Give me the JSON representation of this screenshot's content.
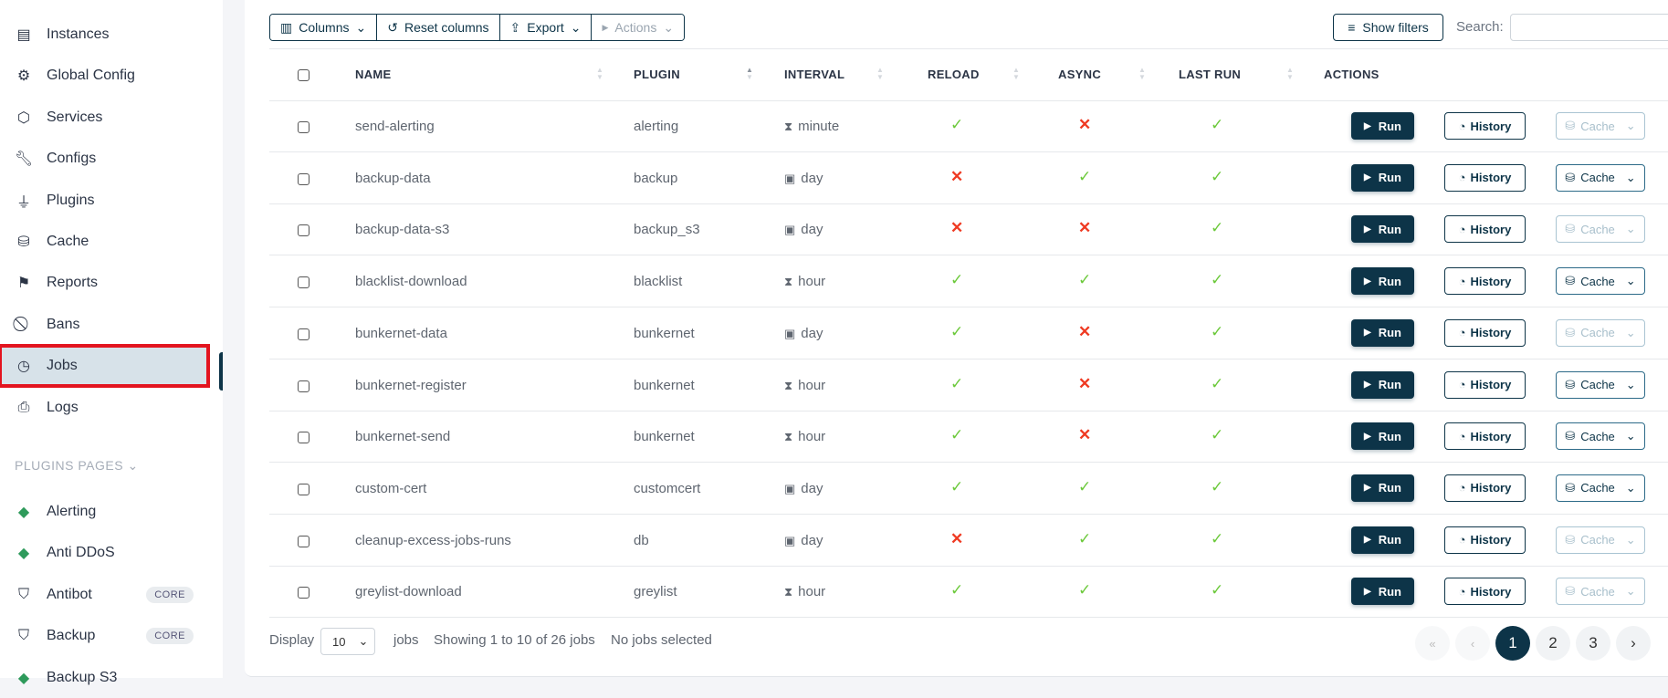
{
  "sidebar": {
    "items": [
      {
        "label": "Instances",
        "icon": "server-icon"
      },
      {
        "label": "Global Config",
        "icon": "gear-icon"
      },
      {
        "label": "Services",
        "icon": "box-icon"
      },
      {
        "label": "Configs",
        "icon": "wrench-icon"
      },
      {
        "label": "Plugins",
        "icon": "plug-icon"
      },
      {
        "label": "Cache",
        "icon": "database-icon"
      },
      {
        "label": "Reports",
        "icon": "flag-icon"
      },
      {
        "label": "Bans",
        "icon": "ban-icon"
      },
      {
        "label": "Jobs",
        "icon": "clock-icon",
        "active": true
      },
      {
        "label": "Logs",
        "icon": "file-search-icon"
      }
    ],
    "section_label": "PLUGINS PAGES",
    "plugins": [
      {
        "label": "Alerting",
        "icon": "gem-icon"
      },
      {
        "label": "Anti DDoS",
        "icon": "gem-icon"
      },
      {
        "label": "Antibot",
        "icon": "shield-icon",
        "badge": "CORE"
      },
      {
        "label": "Backup",
        "icon": "shield-icon",
        "badge": "CORE"
      },
      {
        "label": "Backup S3",
        "icon": "gem-icon"
      }
    ]
  },
  "toolbar": {
    "columns": "Columns",
    "reset": "Reset columns",
    "export": "Export",
    "actions": "Actions",
    "show_filters": "Show filters",
    "search_label": "Search:",
    "search_value": ""
  },
  "table": {
    "headers": [
      "NAME",
      "PLUGIN",
      "INTERVAL",
      "RELOAD",
      "ASYNC",
      "LAST RUN",
      "ACTIONS"
    ],
    "buttons": {
      "run": "Run",
      "history": "History",
      "cache": "Cache"
    },
    "rows": [
      {
        "name": "send-alerting",
        "plugin": "alerting",
        "interval": "minute",
        "reload": true,
        "async": false,
        "last_run": true,
        "cache_enabled": false
      },
      {
        "name": "backup-data",
        "plugin": "backup",
        "interval": "day",
        "reload": false,
        "async": true,
        "last_run": true,
        "cache_enabled": true
      },
      {
        "name": "backup-data-s3",
        "plugin": "backup_s3",
        "interval": "day",
        "reload": false,
        "async": false,
        "last_run": true,
        "cache_enabled": false
      },
      {
        "name": "blacklist-download",
        "plugin": "blacklist",
        "interval": "hour",
        "reload": true,
        "async": true,
        "last_run": true,
        "cache_enabled": true
      },
      {
        "name": "bunkernet-data",
        "plugin": "bunkernet",
        "interval": "day",
        "reload": true,
        "async": false,
        "last_run": true,
        "cache_enabled": false
      },
      {
        "name": "bunkernet-register",
        "plugin": "bunkernet",
        "interval": "hour",
        "reload": true,
        "async": false,
        "last_run": true,
        "cache_enabled": true
      },
      {
        "name": "bunkernet-send",
        "plugin": "bunkernet",
        "interval": "hour",
        "reload": true,
        "async": false,
        "last_run": true,
        "cache_enabled": true
      },
      {
        "name": "custom-cert",
        "plugin": "customcert",
        "interval": "day",
        "reload": true,
        "async": true,
        "last_run": true,
        "cache_enabled": true
      },
      {
        "name": "cleanup-excess-jobs-runs",
        "plugin": "db",
        "interval": "day",
        "reload": false,
        "async": true,
        "last_run": true,
        "cache_enabled": false
      },
      {
        "name": "greylist-download",
        "plugin": "greylist",
        "interval": "hour",
        "reload": true,
        "async": true,
        "last_run": true,
        "cache_enabled": false
      }
    ]
  },
  "footer": {
    "display_label": "Display",
    "page_size": "10",
    "jobs_label": "jobs",
    "showing": "Showing 1 to 10 of 26 jobs",
    "selected": "No jobs selected"
  },
  "pagination": {
    "first": "«",
    "prev": "‹",
    "pages": [
      "1",
      "2",
      "3"
    ],
    "current": "1",
    "next": "›"
  },
  "colors": {
    "accent": "#0d3448",
    "yes": "#6cc93b",
    "no": "#ef3a22",
    "highlight": "#e3141f"
  }
}
